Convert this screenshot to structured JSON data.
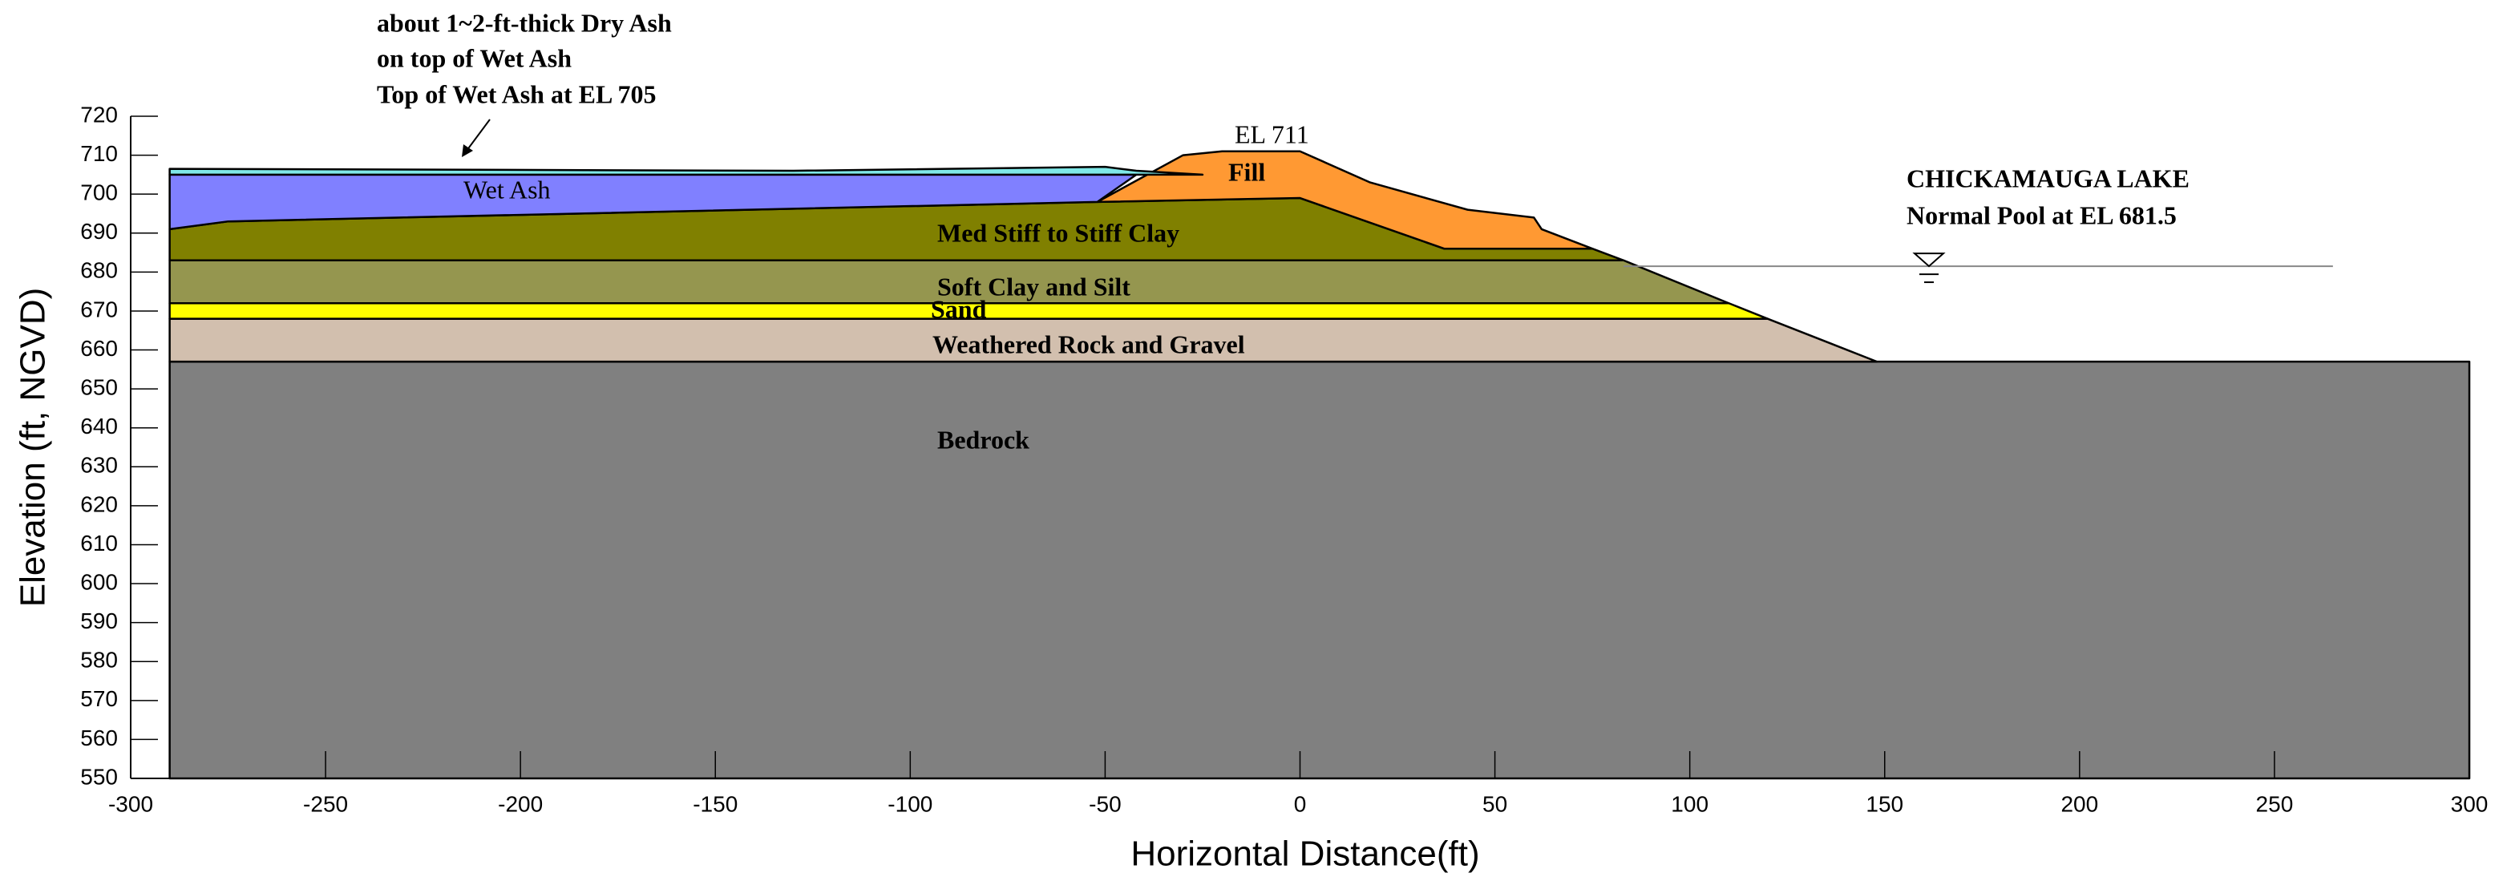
{
  "chart_data": {
    "type": "section",
    "xlabel": "Horizontal Distance(ft)",
    "ylabel": "Elevation (ft, NGVD)",
    "xlim": [
      -300,
      300
    ],
    "ylim": [
      550,
      720
    ],
    "xticks": [
      -300,
      -250,
      -200,
      -150,
      -100,
      -50,
      0,
      50,
      100,
      150,
      200,
      250,
      300
    ],
    "yticks": [
      550,
      560,
      570,
      580,
      590,
      600,
      610,
      620,
      630,
      640,
      650,
      660,
      670,
      680,
      690,
      700,
      710,
      720
    ],
    "layers": [
      {
        "name": "Bedrock",
        "color": "#808080",
        "points": [
          [
            -290,
            550
          ],
          [
            300,
            550
          ],
          [
            300,
            657
          ],
          [
            -290,
            657
          ]
        ]
      },
      {
        "name": "Weathered Rock and Gravel",
        "color": "#d2bfae",
        "points": [
          [
            -290,
            657
          ],
          [
            148,
            657
          ],
          [
            120,
            668
          ],
          [
            -290,
            668
          ]
        ]
      },
      {
        "name": "Sand",
        "color": "#ffff00",
        "points": [
          [
            -290,
            668
          ],
          [
            120,
            668
          ],
          [
            110,
            672
          ],
          [
            -290,
            672
          ]
        ]
      },
      {
        "name": "Soft Clay and Silt",
        "color": "#95964f",
        "points": [
          [
            -290,
            672
          ],
          [
            110,
            672
          ],
          [
            83,
            683
          ],
          [
            -290,
            683
          ]
        ]
      },
      {
        "name": "Med Stiff to Stiff Clay",
        "color": "#808000",
        "points": [
          [
            -290,
            683
          ],
          [
            83,
            683
          ],
          [
            75,
            686
          ],
          [
            37,
            686
          ],
          [
            0,
            699
          ],
          [
            -52,
            698
          ],
          [
            -275,
            693
          ],
          [
            -290,
            691
          ]
        ]
      },
      {
        "name": "Fill",
        "color": "#ff9933",
        "points": [
          [
            -52,
            698
          ],
          [
            -30,
            710
          ],
          [
            -20,
            711
          ],
          [
            0,
            711
          ],
          [
            18,
            703
          ],
          [
            43,
            696
          ],
          [
            60,
            694
          ],
          [
            62,
            691
          ],
          [
            75,
            686
          ],
          [
            37,
            686
          ],
          [
            0,
            699
          ]
        ]
      },
      {
        "name": "Wet Ash",
        "color": "#8080ff",
        "points": [
          [
            -290,
            691
          ],
          [
            -275,
            693
          ],
          [
            -52,
            698
          ],
          [
            -42,
            705
          ],
          [
            -290,
            705
          ]
        ]
      },
      {
        "color": "#7fe8e8",
        "points": [
          [
            -290,
            705
          ],
          [
            -25,
            705
          ],
          [
            -42,
            706
          ],
          [
            -50,
            707
          ],
          [
            -130,
            706
          ],
          [
            -290,
            706.5
          ]
        ]
      }
    ],
    "crest_label": "EL 711",
    "annotation": [
      "about 1~2-ft-thick Dry Ash",
      "on top of Wet Ash",
      "Top of Wet Ash at EL 705"
    ],
    "lake": [
      "CHICKAMAUGA LAKE",
      "Normal Pool at EL 681.5"
    ],
    "water_line": {
      "y": 681.5,
      "x": [
        83,
        265
      ]
    }
  }
}
